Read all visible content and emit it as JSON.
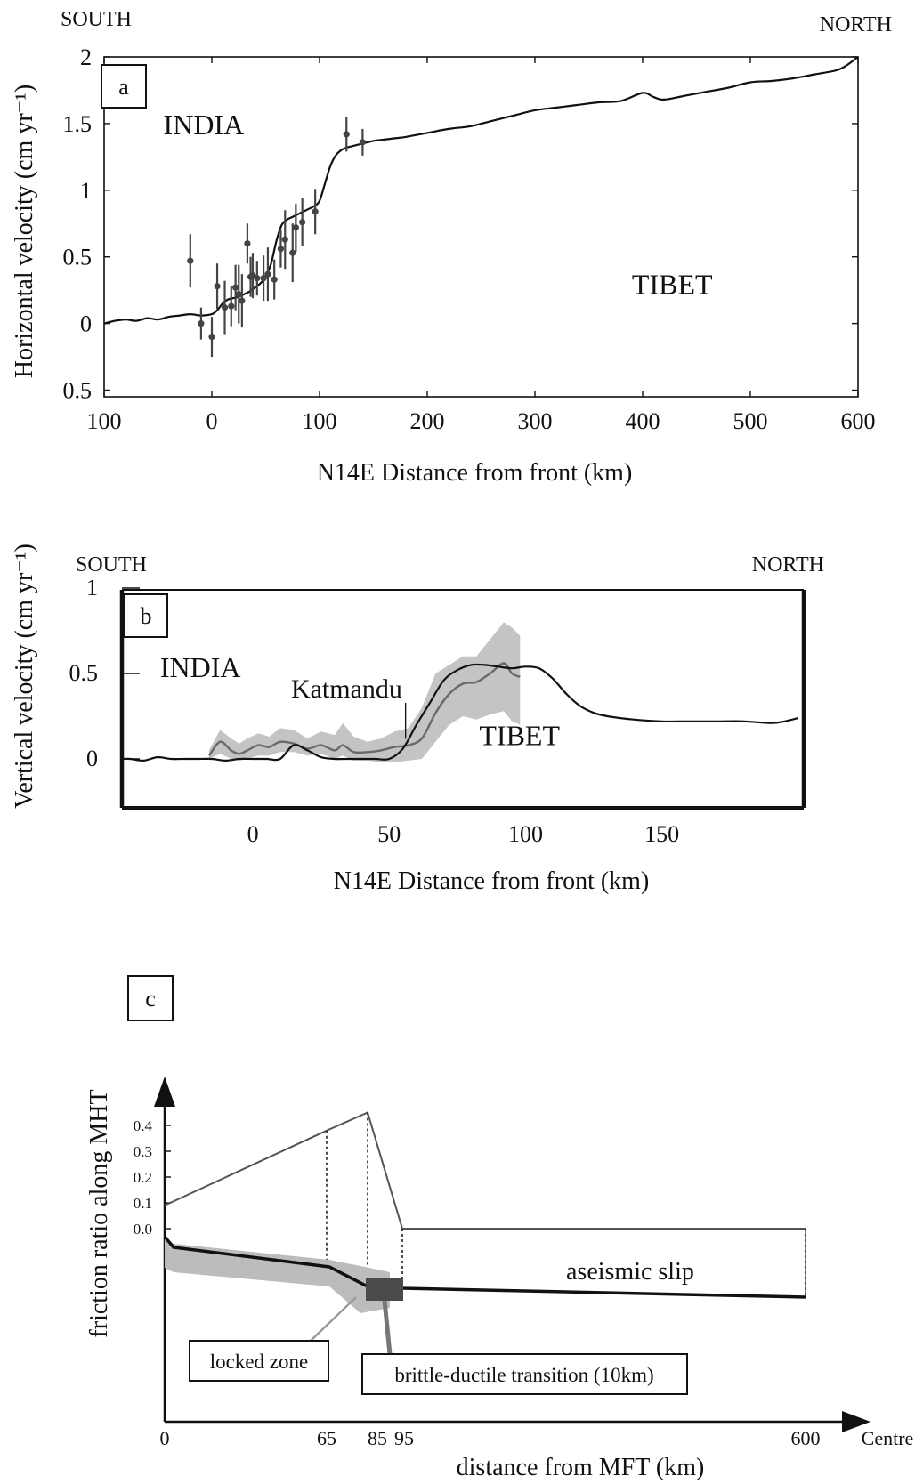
{
  "chart_data": [
    {
      "panel": "a",
      "type": "line",
      "panel_label": "a",
      "corner_labels": {
        "left": "SOUTH",
        "right": "NORTH"
      },
      "xlabel": "N14E Distance from front (km)",
      "ylabel": "Horizontal velocity (cm yr⁻¹)",
      "x_tick_values": [
        -100,
        0,
        100,
        200,
        300,
        400,
        500,
        600
      ],
      "x_tick_labels": [
        "100",
        "0",
        "100",
        "200",
        "300",
        "400",
        "500",
        "600"
      ],
      "y_tick_values": [
        -0.5,
        0,
        0.5,
        1,
        1.5,
        2
      ],
      "y_tick_labels": [
        "0.5",
        "0",
        "0.5",
        "1",
        "1.5",
        "2"
      ],
      "xlim": [
        -100,
        600
      ],
      "ylim": [
        -0.55,
        2.0
      ],
      "annotations": [
        {
          "text": "INDIA",
          "x": -45,
          "y": 1.42
        },
        {
          "text": "TIBET",
          "x": 390,
          "y": 0.22
        }
      ],
      "series": [
        {
          "kind": "line",
          "x": [
            -100,
            -90,
            -80,
            -70,
            -60,
            -50,
            -40,
            -30,
            -20,
            -10,
            0,
            5,
            10,
            15,
            20,
            25,
            30,
            35,
            40,
            45,
            50,
            55,
            60,
            65,
            70,
            75,
            80,
            85,
            90,
            95,
            100,
            105,
            110,
            115,
            120,
            125,
            130,
            140,
            150,
            160,
            170,
            180,
            200,
            220,
            240,
            260,
            280,
            300,
            320,
            340,
            360,
            380,
            400,
            410,
            420,
            440,
            460,
            480,
            500,
            520,
            540,
            560,
            580,
            590,
            600
          ],
          "y": [
            0.0,
            0.02,
            0.03,
            0.02,
            0.04,
            0.03,
            0.05,
            0.06,
            0.07,
            0.06,
            0.07,
            0.1,
            0.15,
            0.18,
            0.19,
            0.2,
            0.22,
            0.24,
            0.27,
            0.3,
            0.35,
            0.45,
            0.62,
            0.74,
            0.78,
            0.8,
            0.82,
            0.84,
            0.86,
            0.88,
            0.92,
            1.05,
            1.18,
            1.26,
            1.3,
            1.32,
            1.33,
            1.35,
            1.37,
            1.38,
            1.39,
            1.4,
            1.43,
            1.46,
            1.48,
            1.52,
            1.56,
            1.6,
            1.62,
            1.64,
            1.66,
            1.67,
            1.73,
            1.7,
            1.68,
            1.71,
            1.74,
            1.77,
            1.81,
            1.82,
            1.84,
            1.87,
            1.9,
            1.94,
            2.0
          ]
        },
        {
          "kind": "errorbar",
          "x": [
            -20,
            -10,
            0,
            5,
            12,
            18,
            22,
            25,
            28,
            33,
            36,
            38,
            42,
            48,
            52,
            58,
            64,
            68,
            75,
            78,
            84,
            96,
            125,
            140
          ],
          "y": [
            0.47,
            0.0,
            -0.1,
            0.28,
            0.12,
            0.13,
            0.27,
            0.22,
            0.17,
            0.6,
            0.35,
            0.36,
            0.34,
            0.34,
            0.37,
            0.33,
            0.56,
            0.63,
            0.53,
            0.72,
            0.76,
            0.84,
            1.42,
            1.36
          ],
          "err": [
            0.2,
            0.12,
            0.15,
            0.17,
            0.2,
            0.15,
            0.17,
            0.22,
            0.2,
            0.15,
            0.15,
            0.17,
            0.13,
            0.17,
            0.2,
            0.15,
            0.14,
            0.22,
            0.22,
            0.18,
            0.18,
            0.17,
            0.13,
            0.1
          ]
        }
      ]
    },
    {
      "panel": "b",
      "type": "line",
      "panel_label": "b",
      "corner_labels": {
        "left": "SOUTH",
        "right": "NORTH"
      },
      "xlabel": "N14E Distance from front (km)",
      "ylabel": "Vertical velocity (cm yr⁻¹)",
      "x_tick_values": [
        0,
        50,
        100,
        150
      ],
      "x_tick_labels": [
        "0",
        "50",
        "100",
        "150"
      ],
      "y_tick_values": [
        0,
        0.5,
        1
      ],
      "y_tick_labels": [
        "0",
        "0.5",
        "1"
      ],
      "xlim": [
        -48,
        202
      ],
      "ylim": [
        -0.28,
        1.0
      ],
      "annotations": [
        {
          "text": "INDIA",
          "x": -34,
          "y": 0.48
        },
        {
          "text": "Katmandu",
          "x": 14,
          "y": 0.36,
          "pointer_x": 56,
          "pointer_y": 0.18
        },
        {
          "text": "TIBET",
          "x": 83,
          "y": 0.08
        }
      ],
      "series": [
        {
          "kind": "line",
          "style": "model",
          "x": [
            -48,
            -45,
            -40,
            -35,
            -30,
            -25,
            -20,
            -15,
            -10,
            -5,
            0,
            5,
            10,
            15,
            20,
            25,
            30,
            35,
            40,
            45,
            50,
            55,
            60,
            65,
            70,
            75,
            80,
            85,
            90,
            95,
            100,
            105,
            110,
            115,
            120,
            125,
            130,
            140,
            150,
            160,
            170,
            180,
            190,
            195,
            200
          ],
          "y": [
            0.0,
            0.0,
            -0.01,
            0.01,
            0.0,
            0.0,
            0.0,
            0.0,
            -0.01,
            0.0,
            0.0,
            0.0,
            0.0,
            0.08,
            0.05,
            0.01,
            0.0,
            0.0,
            0.0,
            0.0,
            0.0,
            0.06,
            0.2,
            0.33,
            0.46,
            0.52,
            0.55,
            0.55,
            0.54,
            0.53,
            0.54,
            0.53,
            0.47,
            0.38,
            0.31,
            0.27,
            0.25,
            0.23,
            0.22,
            0.22,
            0.22,
            0.22,
            0.21,
            0.22,
            0.24
          ]
        },
        {
          "kind": "line",
          "style": "observed",
          "x": [
            -16,
            -12,
            -8,
            -5,
            -2,
            2,
            6,
            10,
            15,
            20,
            25,
            30,
            33,
            37,
            42,
            47,
            52,
            57,
            62,
            67,
            72,
            77,
            82,
            87,
            92,
            95,
            98
          ],
          "y": [
            0.02,
            0.1,
            0.05,
            0.03,
            0.05,
            0.08,
            0.07,
            0.1,
            0.09,
            0.06,
            0.08,
            0.05,
            0.08,
            0.04,
            0.04,
            0.05,
            0.07,
            0.08,
            0.12,
            0.27,
            0.38,
            0.44,
            0.45,
            0.5,
            0.56,
            0.5,
            0.48
          ]
        },
        {
          "kind": "band",
          "x": [
            -16,
            -12,
            -8,
            -5,
            -2,
            2,
            6,
            10,
            15,
            20,
            25,
            30,
            33,
            37,
            42,
            47,
            52,
            57,
            62,
            67,
            72,
            77,
            82,
            87,
            92,
            95,
            98
          ],
          "lower": [
            0.0,
            0.03,
            0.0,
            -0.01,
            0.0,
            0.02,
            0.02,
            0.04,
            0.04,
            0.02,
            0.03,
            0.0,
            0.02,
            -0.01,
            -0.01,
            -0.02,
            -0.02,
            -0.01,
            0.0,
            0.1,
            0.2,
            0.25,
            0.23,
            0.26,
            0.28,
            0.22,
            0.2
          ],
          "upper": [
            0.05,
            0.17,
            0.12,
            0.09,
            0.12,
            0.15,
            0.13,
            0.18,
            0.17,
            0.12,
            0.16,
            0.14,
            0.21,
            0.13,
            0.1,
            0.12,
            0.16,
            0.18,
            0.3,
            0.5,
            0.55,
            0.6,
            0.6,
            0.7,
            0.8,
            0.77,
            0.72
          ]
        }
      ]
    },
    {
      "panel": "c",
      "type": "line",
      "panel_label": "c",
      "xlabel": "distance from MFT (km)",
      "ylabel": "friction ratio along MHT",
      "x_tick_values": [
        0,
        65,
        85,
        95,
        600
      ],
      "x_tick_labels": [
        "0",
        "65",
        "85",
        "95",
        "600"
      ],
      "x_axis_end_label": "Centre",
      "y_tick_values": [
        0.0,
        0.1,
        0.2,
        0.3,
        0.4
      ],
      "y_tick_labels": [
        "0.0",
        "0.1",
        "0.2",
        "0.3",
        "0.4"
      ],
      "annotations": [
        {
          "text": "aseismic slip",
          "x": 350,
          "y": -0.16
        }
      ],
      "boxes": [
        {
          "text": "locked zone"
        },
        {
          "text": "brittle-ductile transition (10km)"
        }
      ],
      "series": [
        {
          "kind": "line",
          "style": "friction",
          "x": [
            0,
            65,
            85,
            95,
            95,
            600
          ],
          "y": [
            0.09,
            0.38,
            0.45,
            0.0,
            0.0,
            0.0
          ]
        },
        {
          "kind": "line",
          "style": "fault-geometry",
          "x": [
            0,
            5,
            65,
            85,
            95,
            600
          ],
          "y": [
            -0.1,
            -0.13,
            -0.17,
            -0.24,
            -0.24,
            -0.27
          ]
        }
      ]
    }
  ]
}
